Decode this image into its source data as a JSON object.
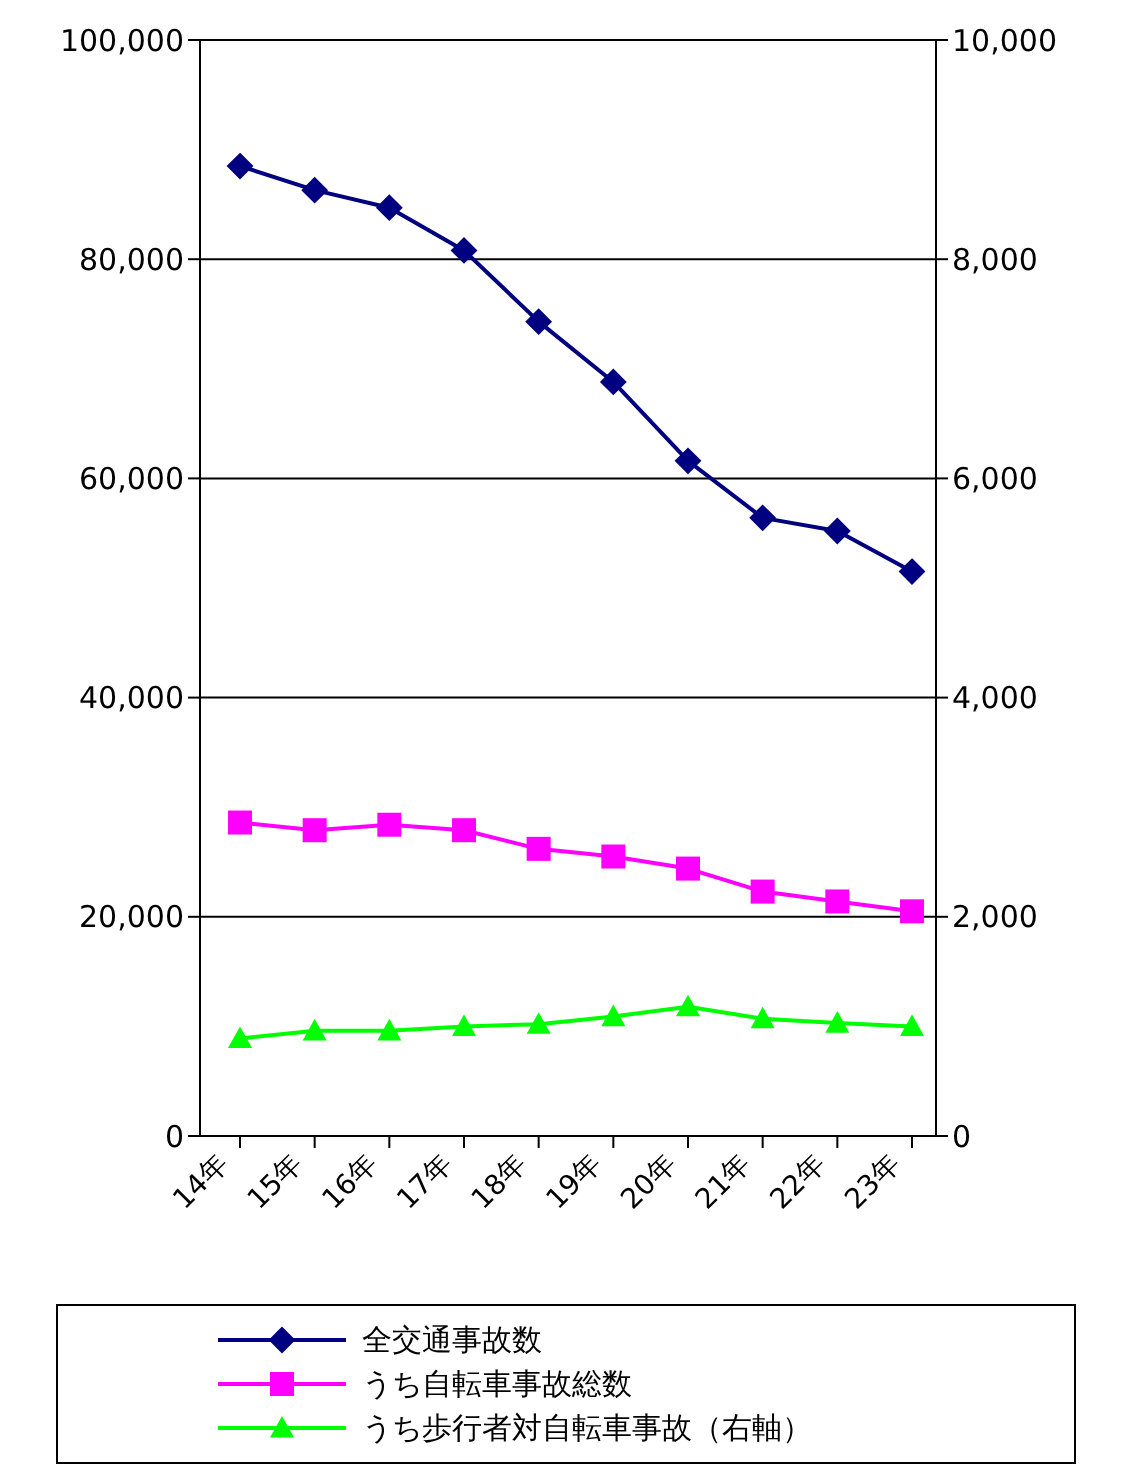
{
  "chart_data": {
    "type": "line",
    "categories": [
      "14年",
      "15年",
      "16年",
      "17年",
      "18年",
      "19年",
      "20年",
      "21年",
      "22年",
      "23年"
    ],
    "series": [
      {
        "name": "全交通事故数",
        "color": "#000080",
        "marker": "diamond",
        "values": [
          88500,
          86300,
          84700,
          80800,
          74300,
          68800,
          61600,
          56400,
          55200,
          51500
        ]
      },
      {
        "name": "うち自転車事故総数",
        "color": "#ff00ff",
        "marker": "square",
        "values": [
          28600,
          27900,
          28400,
          27900,
          26200,
          25500,
          24400,
          22300,
          21400,
          20500
        ]
      },
      {
        "name": "うち歩行者対自転車事故（右軸）",
        "color": "#00ff00",
        "marker": "triangle",
        "axis": "y2",
        "values": [
          890,
          960,
          960,
          1000,
          1020,
          1090,
          1180,
          1070,
          1030,
          1000
        ]
      }
    ],
    "ylim": [
      0,
      100000
    ],
    "yticks": [
      0,
      {
        "value": 20000,
        "label": "20,000"
      },
      {
        "value": 40000,
        "label": "40,000"
      },
      {
        "value": 60000,
        "label": "60,000"
      },
      {
        "value": 80000,
        "label": "80,000"
      },
      {
        "value": 100000,
        "label": "100,000"
      }
    ],
    "y2lim": [
      0,
      10000
    ],
    "y2ticks": [
      0,
      {
        "value": 2000,
        "label": "2,000"
      },
      {
        "value": 4000,
        "label": "4,000"
      },
      {
        "value": 6000,
        "label": "6,000"
      },
      {
        "value": 8000,
        "label": "8,000"
      },
      {
        "value": 10000,
        "label": "10,000"
      }
    ],
    "grid": "y",
    "legend": "bottom"
  }
}
